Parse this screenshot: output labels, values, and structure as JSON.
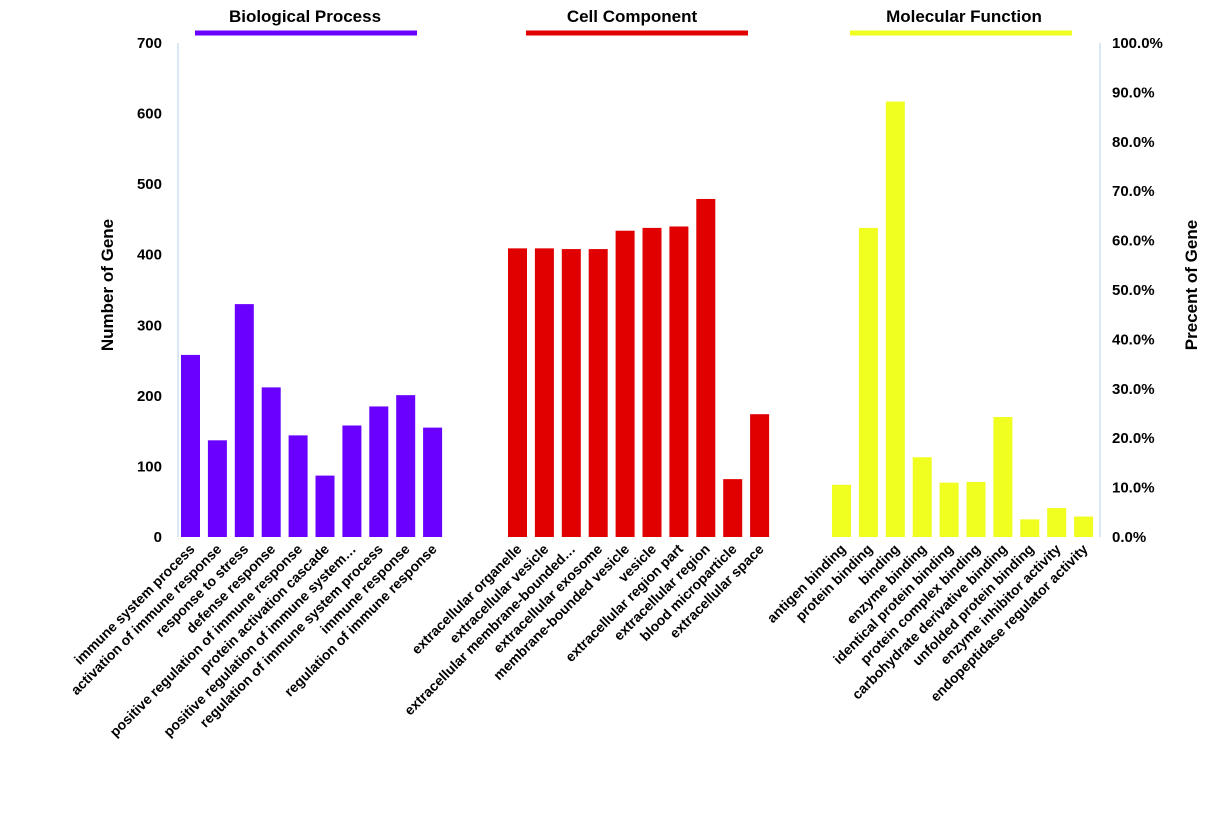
{
  "chart_data": {
    "type": "bar",
    "ylabel": "Number of Gene",
    "y2label": "Precent of Gene",
    "ylim": [
      0,
      700
    ],
    "y_ticks": [
      "0",
      "100",
      "200",
      "300",
      "400",
      "500",
      "600",
      "700"
    ],
    "y2lim": [
      0,
      100
    ],
    "y2_ticks": [
      "0.0%",
      "10.0%",
      "20.0%",
      "30.0%",
      "40.0%",
      "50.0%",
      "60.0%",
      "70.0%",
      "80.0%",
      "90.0%",
      "100.0%"
    ],
    "grid": false,
    "groups": [
      {
        "name": "Biological Process",
        "color": "#6a00ff",
        "categories": [
          "immune system process",
          "activation of immune response",
          "response to stress",
          "defense response",
          "positive regulation of immune response",
          "protein activation cascade",
          "positive regulation of immune system…",
          "regulation of immune system process",
          "immune response",
          "regulation of immune response"
        ],
        "values": [
          258,
          137,
          330,
          212,
          144,
          87,
          158,
          185,
          201,
          155
        ]
      },
      {
        "name": "Cell Component",
        "color": "#e00000",
        "categories": [
          "extracellular organelle",
          "extracellular vesicle",
          "extracellular membrane-bounded…",
          "extracellular exosome",
          "membrane-bounded vesicle",
          "vesicle",
          "extracellular region part",
          "extracellular region",
          "blood microparticle",
          "extracellular space"
        ],
        "values": [
          409,
          409,
          408,
          408,
          434,
          438,
          440,
          479,
          82,
          174
        ]
      },
      {
        "name": "Molecular Function",
        "color": "#f0ff1f",
        "categories": [
          "antigen binding",
          "protein binding",
          "binding",
          "enzyme binding",
          "identical protein binding",
          "protein complex binding",
          "carbohydrate derivative binding",
          "unfolded protein binding",
          "enzyme inhibitor activity",
          "endopeptidase regulator activity"
        ],
        "values": [
          74,
          438,
          617,
          113,
          77,
          78,
          170,
          25,
          41,
          29
        ]
      }
    ]
  }
}
